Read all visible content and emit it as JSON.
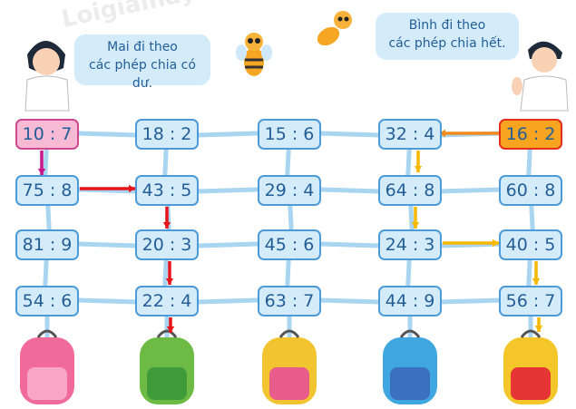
{
  "speech": {
    "mai": [
      "Mai đi theo",
      "các phép chia có dư."
    ],
    "binh": [
      "Bình đi theo",
      "các phép chia hết."
    ]
  },
  "grid": [
    [
      "10 : 7",
      "18 : 2",
      "15 : 6",
      "32 : 4",
      "16 : 2"
    ],
    [
      "75 : 8",
      "43 : 5",
      "29 : 4",
      "64 : 8",
      "60 : 8"
    ],
    [
      "81 : 9",
      "20 : 3",
      "45 : 6",
      "24 : 3",
      "40 : 5"
    ],
    [
      "54 : 6",
      "22 : 4",
      "63 : 7",
      "44 : 9",
      "56 : 7"
    ]
  ],
  "start_mai": "10 : 7",
  "start_binh": "16 : 2",
  "backpacks": [
    "pink",
    "green",
    "yellow-pink",
    "blue",
    "yellow-red"
  ],
  "colors": {
    "box_fill": "#d4ebfa",
    "box_border": "#4c9bd8",
    "text": "#235e96",
    "mai_start": "#f6bad4",
    "binh_start": "#f7a520",
    "mai_path": "#e8141b",
    "binh_path": "#f6b800",
    "path_line": "#a9d5f0"
  },
  "watermark": "Loigiaihay.com"
}
